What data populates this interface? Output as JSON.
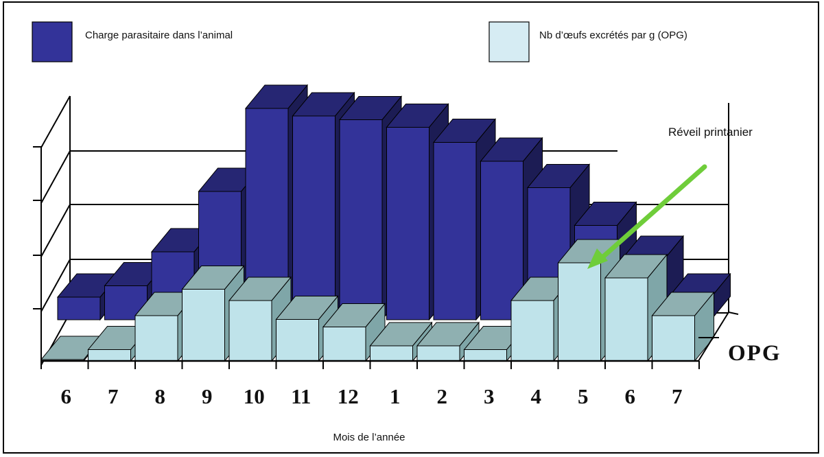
{
  "chart_data": {
    "type": "bar",
    "style": "3d-clustered",
    "categories": [
      "6",
      "7",
      "8",
      "9",
      "10",
      "11",
      "12",
      "1",
      "2",
      "3",
      "4",
      "5",
      "6",
      "7"
    ],
    "series": [
      {
        "name": "Charge parasitaire dans l’animal",
        "values": [
          0.6,
          0.9,
          1.8,
          3.4,
          5.6,
          5.4,
          5.3,
          5.1,
          4.7,
          4.2,
          3.5,
          2.5,
          1.6,
          0.6
        ],
        "color": "#333399"
      },
      {
        "name": "Nb d’œufs excrétés par g  (OPG)",
        "values": [
          0.0,
          0.3,
          1.2,
          1.9,
          1.6,
          1.1,
          0.9,
          0.4,
          0.4,
          0.3,
          1.6,
          2.6,
          2.2,
          1.2
        ],
        "color": "#bfe3ea"
      }
    ],
    "xlabel": "Mois de l’année",
    "ylabel": "",
    "depth_label": "OPG",
    "ylim": [
      0,
      6
    ],
    "grid": true,
    "legend_placement": "top",
    "annotation": {
      "text": "Réveil printanier",
      "arrow_color": "#6fcd3a",
      "points_to_category_index": 11
    }
  }
}
